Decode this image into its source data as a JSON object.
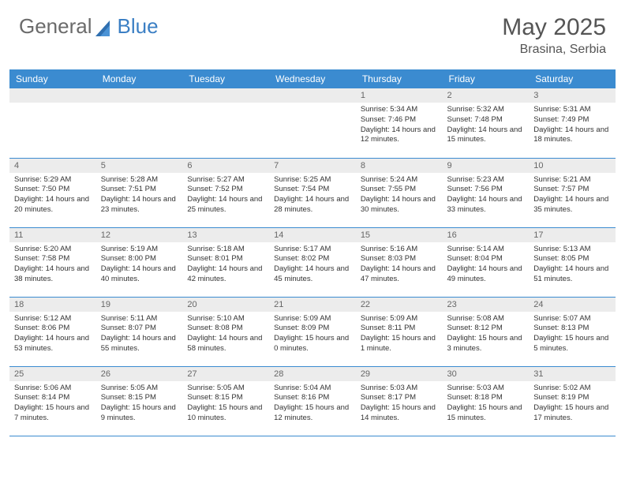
{
  "brand": {
    "part1": "General",
    "part2": "Blue"
  },
  "title": {
    "month": "May 2025",
    "location": "Brasina, Serbia"
  },
  "colors": {
    "header_bg": "#3b8bd0",
    "header_text": "#ffffff",
    "daynum_bg": "#ececec",
    "daynum_text": "#666666",
    "cell_border": "#3b8bd0",
    "brand_gray": "#6b6b6b",
    "brand_blue": "#3b7fc4"
  },
  "weekdays": [
    "Sunday",
    "Monday",
    "Tuesday",
    "Wednesday",
    "Thursday",
    "Friday",
    "Saturday"
  ],
  "grid": [
    [
      null,
      null,
      null,
      null,
      {
        "n": "1",
        "sr": "5:34 AM",
        "ss": "7:46 PM",
        "dl": "14 hours and 12 minutes."
      },
      {
        "n": "2",
        "sr": "5:32 AM",
        "ss": "7:48 PM",
        "dl": "14 hours and 15 minutes."
      },
      {
        "n": "3",
        "sr": "5:31 AM",
        "ss": "7:49 PM",
        "dl": "14 hours and 18 minutes."
      }
    ],
    [
      {
        "n": "4",
        "sr": "5:29 AM",
        "ss": "7:50 PM",
        "dl": "14 hours and 20 minutes."
      },
      {
        "n": "5",
        "sr": "5:28 AM",
        "ss": "7:51 PM",
        "dl": "14 hours and 23 minutes."
      },
      {
        "n": "6",
        "sr": "5:27 AM",
        "ss": "7:52 PM",
        "dl": "14 hours and 25 minutes."
      },
      {
        "n": "7",
        "sr": "5:25 AM",
        "ss": "7:54 PM",
        "dl": "14 hours and 28 minutes."
      },
      {
        "n": "8",
        "sr": "5:24 AM",
        "ss": "7:55 PM",
        "dl": "14 hours and 30 minutes."
      },
      {
        "n": "9",
        "sr": "5:23 AM",
        "ss": "7:56 PM",
        "dl": "14 hours and 33 minutes."
      },
      {
        "n": "10",
        "sr": "5:21 AM",
        "ss": "7:57 PM",
        "dl": "14 hours and 35 minutes."
      }
    ],
    [
      {
        "n": "11",
        "sr": "5:20 AM",
        "ss": "7:58 PM",
        "dl": "14 hours and 38 minutes."
      },
      {
        "n": "12",
        "sr": "5:19 AM",
        "ss": "8:00 PM",
        "dl": "14 hours and 40 minutes."
      },
      {
        "n": "13",
        "sr": "5:18 AM",
        "ss": "8:01 PM",
        "dl": "14 hours and 42 minutes."
      },
      {
        "n": "14",
        "sr": "5:17 AM",
        "ss": "8:02 PM",
        "dl": "14 hours and 45 minutes."
      },
      {
        "n": "15",
        "sr": "5:16 AM",
        "ss": "8:03 PM",
        "dl": "14 hours and 47 minutes."
      },
      {
        "n": "16",
        "sr": "5:14 AM",
        "ss": "8:04 PM",
        "dl": "14 hours and 49 minutes."
      },
      {
        "n": "17",
        "sr": "5:13 AM",
        "ss": "8:05 PM",
        "dl": "14 hours and 51 minutes."
      }
    ],
    [
      {
        "n": "18",
        "sr": "5:12 AM",
        "ss": "8:06 PM",
        "dl": "14 hours and 53 minutes."
      },
      {
        "n": "19",
        "sr": "5:11 AM",
        "ss": "8:07 PM",
        "dl": "14 hours and 55 minutes."
      },
      {
        "n": "20",
        "sr": "5:10 AM",
        "ss": "8:08 PM",
        "dl": "14 hours and 58 minutes."
      },
      {
        "n": "21",
        "sr": "5:09 AM",
        "ss": "8:09 PM",
        "dl": "15 hours and 0 minutes."
      },
      {
        "n": "22",
        "sr": "5:09 AM",
        "ss": "8:11 PM",
        "dl": "15 hours and 1 minute."
      },
      {
        "n": "23",
        "sr": "5:08 AM",
        "ss": "8:12 PM",
        "dl": "15 hours and 3 minutes."
      },
      {
        "n": "24",
        "sr": "5:07 AM",
        "ss": "8:13 PM",
        "dl": "15 hours and 5 minutes."
      }
    ],
    [
      {
        "n": "25",
        "sr": "5:06 AM",
        "ss": "8:14 PM",
        "dl": "15 hours and 7 minutes."
      },
      {
        "n": "26",
        "sr": "5:05 AM",
        "ss": "8:15 PM",
        "dl": "15 hours and 9 minutes."
      },
      {
        "n": "27",
        "sr": "5:05 AM",
        "ss": "8:15 PM",
        "dl": "15 hours and 10 minutes."
      },
      {
        "n": "28",
        "sr": "5:04 AM",
        "ss": "8:16 PM",
        "dl": "15 hours and 12 minutes."
      },
      {
        "n": "29",
        "sr": "5:03 AM",
        "ss": "8:17 PM",
        "dl": "15 hours and 14 minutes."
      },
      {
        "n": "30",
        "sr": "5:03 AM",
        "ss": "8:18 PM",
        "dl": "15 hours and 15 minutes."
      },
      {
        "n": "31",
        "sr": "5:02 AM",
        "ss": "8:19 PM",
        "dl": "15 hours and 17 minutes."
      }
    ]
  ],
  "labels": {
    "sunrise": "Sunrise:",
    "sunset": "Sunset:",
    "daylight": "Daylight:"
  }
}
